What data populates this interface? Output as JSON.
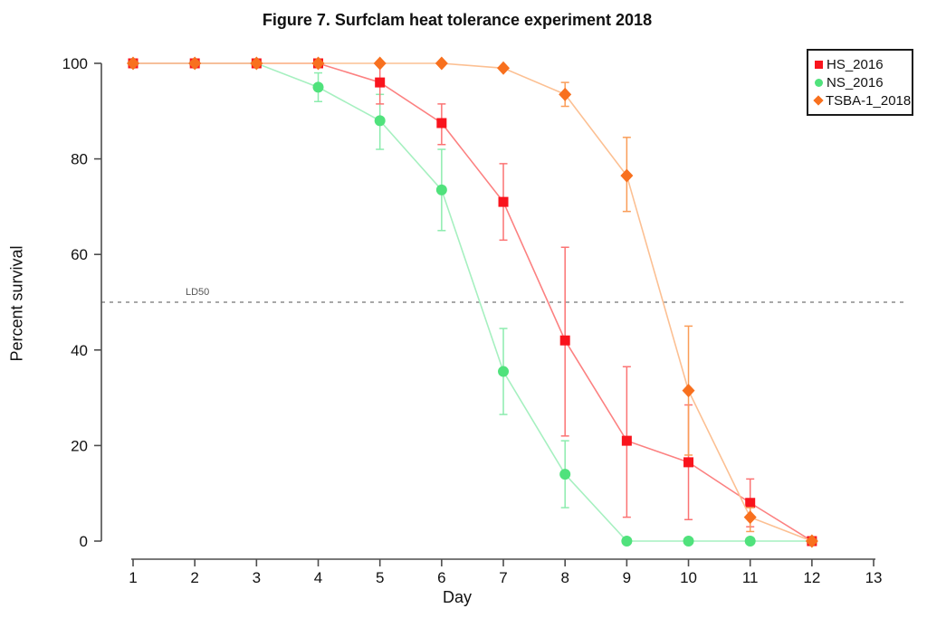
{
  "figure": {
    "title": "Figure 7. Surfclam heat tolerance experiment 2018",
    "xlabel": "Day",
    "ylabel": "Percent survival",
    "ld50_label": "LD50"
  },
  "legend": {
    "position": "top-right",
    "items": [
      {
        "label": "HS_2016",
        "marker": "square",
        "color": "#f9141d"
      },
      {
        "label": "NS_2016",
        "marker": "circle",
        "color": "#50e27c"
      },
      {
        "label": "TSBA-1_2018",
        "marker": "diamond",
        "color": "#f8701e"
      }
    ]
  },
  "chart_data": {
    "type": "line",
    "title": "Figure 7. Surfclam heat tolerance experiment 2018",
    "xlabel": "Day",
    "ylabel": "Percent survival",
    "x": [
      1,
      2,
      3,
      4,
      5,
      6,
      7,
      8,
      9,
      10,
      11,
      12
    ],
    "x_ticks": [
      1,
      2,
      3,
      4,
      5,
      6,
      7,
      8,
      9,
      10,
      11,
      12,
      13
    ],
    "y_ticks": [
      0,
      20,
      40,
      60,
      80,
      100
    ],
    "xlim": [
      1,
      13
    ],
    "ylim": [
      0,
      100
    ],
    "grid": false,
    "legend_position": "top-right",
    "reference_line": {
      "y": 50,
      "label": "LD50",
      "style": "dashed",
      "color": "#8c8c8c"
    },
    "axis_color": "#4d4d4d",
    "series": [
      {
        "name": "NS_2016",
        "marker": "circle",
        "marker_color": "#50e27c",
        "line_color": "#a6f0c0",
        "error_color": "#8cecae",
        "values": [
          100,
          100,
          100,
          95,
          88,
          73.5,
          35.5,
          14,
          0,
          0,
          0,
          0
        ],
        "err_lo": [
          100,
          100,
          100,
          92,
          82,
          65,
          26.5,
          7,
          0,
          0,
          0,
          0
        ],
        "err_hi": [
          100,
          100,
          100,
          98,
          93.5,
          82,
          44.5,
          21,
          0,
          0,
          0,
          0
        ]
      },
      {
        "name": "HS_2016",
        "marker": "square",
        "marker_color": "#f9141d",
        "line_color": "#fc8181",
        "error_color": "#fb7373",
        "values": [
          100,
          100,
          100,
          100,
          96,
          87.5,
          71,
          42,
          21,
          16.5,
          8,
          0
        ],
        "err_lo": [
          100,
          100,
          100,
          100,
          91.5,
          83,
          63,
          22,
          5,
          4.5,
          3,
          0
        ],
        "err_hi": [
          100,
          100,
          100,
          100,
          100,
          91.5,
          79,
          61.5,
          36.5,
          28.5,
          13,
          0
        ]
      },
      {
        "name": "TSBA-1_2018",
        "marker": "diamond",
        "marker_color": "#f8701e",
        "line_color": "#fcc093",
        "error_color": "#fa9d58",
        "values": [
          100,
          100,
          100,
          100,
          100,
          100,
          99,
          93.5,
          76.5,
          31.5,
          5,
          0
        ],
        "err_lo": [
          100,
          100,
          100,
          100,
          100,
          100,
          99,
          91,
          69,
          18,
          2,
          0
        ],
        "err_hi": [
          100,
          100,
          100,
          100,
          100,
          100,
          99,
          96,
          84.5,
          45,
          7,
          0
        ]
      }
    ]
  }
}
